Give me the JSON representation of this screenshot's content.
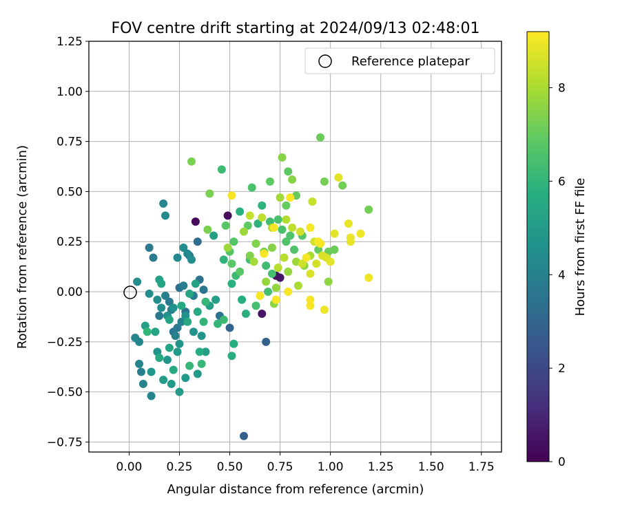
{
  "chart_data": {
    "type": "scatter",
    "title": "FOV centre drift starting at 2024/09/13 02:48:01",
    "xlabel": "Angular distance from reference (arcmin)",
    "ylabel": "Rotation from reference (arcmin)",
    "xlim": [
      -0.2,
      1.85
    ],
    "ylim": [
      -0.8,
      1.25
    ],
    "xticks": [
      "0.00",
      "0.25",
      "0.50",
      "0.75",
      "1.00",
      "1.25",
      "1.50",
      "1.75"
    ],
    "yticks": [
      "−0.75",
      "−0.50",
      "−0.25",
      "0.00",
      "0.25",
      "0.50",
      "0.75",
      "1.00",
      "1.25"
    ],
    "grid": true,
    "legend": {
      "label": "Reference platepar",
      "position": "top-right"
    },
    "reference_point": {
      "x": 0.0,
      "y": 0.0
    },
    "colorbar": {
      "label": "Hours from first FF file",
      "range": [
        0,
        9.2
      ],
      "ticks": [
        "0",
        "2",
        "4",
        "6",
        "8"
      ],
      "colormap": "viridis"
    },
    "points": [
      {
        "x": 0.33,
        "y": 0.35,
        "c": 0.3
      },
      {
        "x": 0.49,
        "y": 0.38,
        "c": 0.3
      },
      {
        "x": 0.73,
        "y": 0.08,
        "c": 0.4
      },
      {
        "x": 0.66,
        "y": -0.11,
        "c": 0.5
      },
      {
        "x": 0.75,
        "y": 0.07,
        "c": 0.5
      },
      {
        "x": 0.57,
        "y": -0.72,
        "c": 2.8
      },
      {
        "x": 0.68,
        "y": -0.25,
        "c": 2.9
      },
      {
        "x": 0.5,
        "y": -0.18,
        "c": 3.0
      },
      {
        "x": 0.34,
        "y": 0.25,
        "c": 3.3
      },
      {
        "x": 0.25,
        "y": 0.02,
        "c": 3.4
      },
      {
        "x": 0.35,
        "y": 0.06,
        "c": 3.4
      },
      {
        "x": 0.45,
        "y": -0.12,
        "c": 3.5
      },
      {
        "x": 0.28,
        "y": -0.1,
        "c": 3.5
      },
      {
        "x": 0.22,
        "y": -0.2,
        "c": 3.6
      },
      {
        "x": 0.3,
        "y": 0.18,
        "c": 3.6
      },
      {
        "x": 0.37,
        "y": 0.01,
        "c": 3.6
      },
      {
        "x": 0.2,
        "y": -0.05,
        "c": 3.7
      },
      {
        "x": 0.15,
        "y": -0.12,
        "c": 3.7
      },
      {
        "x": 0.24,
        "y": -0.18,
        "c": 3.7
      },
      {
        "x": 0.32,
        "y": -0.02,
        "c": 3.8
      },
      {
        "x": 0.1,
        "y": 0.22,
        "c": 3.8
      },
      {
        "x": 0.12,
        "y": 0.17,
        "c": 3.8
      },
      {
        "x": 0.27,
        "y": 0.03,
        "c": 3.9
      },
      {
        "x": 0.18,
        "y": -0.02,
        "c": 3.9
      },
      {
        "x": 0.21,
        "y": -0.09,
        "c": 3.9
      },
      {
        "x": 0.26,
        "y": -0.15,
        "c": 4.0
      },
      {
        "x": 0.23,
        "y": -0.22,
        "c": 4.0
      },
      {
        "x": 0.06,
        "y": -0.4,
        "c": 4.0
      },
      {
        "x": 0.05,
        "y": -0.36,
        "c": 4.1
      },
      {
        "x": 0.11,
        "y": -0.52,
        "c": 4.1
      },
      {
        "x": 0.07,
        "y": -0.46,
        "c": 4.1
      },
      {
        "x": 0.03,
        "y": -0.23,
        "c": 4.2
      },
      {
        "x": 0.05,
        "y": -0.25,
        "c": 4.2
      },
      {
        "x": 0.17,
        "y": 0.44,
        "c": 4.2
      },
      {
        "x": 0.18,
        "y": 0.38,
        "c": 4.3
      },
      {
        "x": 0.24,
        "y": 0.17,
        "c": 4.3
      },
      {
        "x": 0.29,
        "y": 0.19,
        "c": 4.3
      },
      {
        "x": 0.31,
        "y": 0.16,
        "c": 4.4
      },
      {
        "x": 0.27,
        "y": 0.22,
        "c": 4.4
      },
      {
        "x": 0.04,
        "y": 0.05,
        "c": 4.4
      },
      {
        "x": 0.1,
        "y": -0.01,
        "c": 4.5
      },
      {
        "x": 0.14,
        "y": -0.04,
        "c": 4.5
      },
      {
        "x": 0.16,
        "y": -0.08,
        "c": 4.5
      },
      {
        "x": 0.19,
        "y": -0.12,
        "c": 4.6
      },
      {
        "x": 0.22,
        "y": -0.08,
        "c": 4.6
      },
      {
        "x": 0.28,
        "y": -0.12,
        "c": 4.6
      },
      {
        "x": 0.32,
        "y": -0.2,
        "c": 4.7
      },
      {
        "x": 0.36,
        "y": -0.22,
        "c": 4.7
      },
      {
        "x": 0.25,
        "y": -0.26,
        "c": 4.7
      },
      {
        "x": 0.14,
        "y": -0.3,
        "c": 4.8
      },
      {
        "x": 0.11,
        "y": -0.4,
        "c": 4.8
      },
      {
        "x": 0.19,
        "y": -0.34,
        "c": 4.8
      },
      {
        "x": 0.24,
        "y": -0.3,
        "c": 4.9
      },
      {
        "x": 0.34,
        "y": -0.41,
        "c": 4.9
      },
      {
        "x": 0.28,
        "y": -0.43,
        "c": 4.9
      },
      {
        "x": 0.25,
        "y": -0.5,
        "c": 5.0
      },
      {
        "x": 0.21,
        "y": -0.46,
        "c": 5.0
      },
      {
        "x": 0.17,
        "y": -0.44,
        "c": 5.0
      },
      {
        "x": 0.38,
        "y": -0.3,
        "c": 5.1
      },
      {
        "x": 0.4,
        "y": -0.07,
        "c": 5.1
      },
      {
        "x": 0.43,
        "y": -0.04,
        "c": 5.1
      },
      {
        "x": 0.42,
        "y": 0.28,
        "c": 5.2
      },
      {
        "x": 0.15,
        "y": 0.06,
        "c": 5.2
      },
      {
        "x": 0.08,
        "y": -0.17,
        "c": 5.2
      },
      {
        "x": 0.13,
        "y": -0.2,
        "c": 5.3
      },
      {
        "x": 0.2,
        "y": -0.28,
        "c": 5.3
      },
      {
        "x": 0.33,
        "y": 0.04,
        "c": 5.3
      },
      {
        "x": 0.3,
        "y": -0.01,
        "c": 5.4
      },
      {
        "x": 0.16,
        "y": 0.04,
        "c": 5.4
      },
      {
        "x": 0.2,
        "y": -0.14,
        "c": 5.4
      },
      {
        "x": 0.26,
        "y": -0.07,
        "c": 5.5
      },
      {
        "x": 0.34,
        "y": -0.1,
        "c": 5.5
      },
      {
        "x": 0.29,
        "y": -0.15,
        "c": 5.5
      },
      {
        "x": 0.35,
        "y": -0.3,
        "c": 5.6
      },
      {
        "x": 0.22,
        "y": -0.39,
        "c": 5.6
      },
      {
        "x": 0.15,
        "y": -0.33,
        "c": 5.6
      },
      {
        "x": 0.51,
        "y": -0.32,
        "c": 5.7
      },
      {
        "x": 0.52,
        "y": -0.26,
        "c": 5.7
      },
      {
        "x": 0.56,
        "y": -0.04,
        "c": 5.7
      },
      {
        "x": 0.58,
        "y": -0.11,
        "c": 5.8
      },
      {
        "x": 0.51,
        "y": 0.04,
        "c": 5.8
      },
      {
        "x": 0.55,
        "y": 0.4,
        "c": 5.8
      },
      {
        "x": 0.64,
        "y": 0.34,
        "c": 5.9
      },
      {
        "x": 0.66,
        "y": 0.43,
        "c": 5.9
      },
      {
        "x": 0.47,
        "y": 0.16,
        "c": 5.9
      },
      {
        "x": 0.44,
        "y": -0.16,
        "c": 6.0
      },
      {
        "x": 0.37,
        "y": -0.15,
        "c": 6.0
      },
      {
        "x": 0.09,
        "y": -0.2,
        "c": 6.0
      },
      {
        "x": 0.36,
        "y": -0.36,
        "c": 6.1
      },
      {
        "x": 0.3,
        "y": -0.37,
        "c": 6.1
      },
      {
        "x": 0.38,
        "y": -0.05,
        "c": 6.1
      },
      {
        "x": 0.47,
        "y": -0.14,
        "c": 6.2
      },
      {
        "x": 0.46,
        "y": 0.61,
        "c": 6.2
      },
      {
        "x": 0.53,
        "y": 0.08,
        "c": 6.2
      },
      {
        "x": 0.6,
        "y": 0.16,
        "c": 6.3
      },
      {
        "x": 0.68,
        "y": 0.13,
        "c": 6.3
      },
      {
        "x": 0.7,
        "y": 0.35,
        "c": 6.3
      },
      {
        "x": 0.63,
        "y": -0.07,
        "c": 6.4
      },
      {
        "x": 0.69,
        "y": 0.0,
        "c": 6.4
      },
      {
        "x": 0.71,
        "y": 0.09,
        "c": 6.4
      },
      {
        "x": 0.61,
        "y": 0.52,
        "c": 6.5
      },
      {
        "x": 0.74,
        "y": 0.36,
        "c": 6.5
      },
      {
        "x": 0.76,
        "y": 0.31,
        "c": 6.5
      },
      {
        "x": 0.8,
        "y": 0.28,
        "c": 6.6
      },
      {
        "x": 0.78,
        "y": 0.25,
        "c": 6.6
      },
      {
        "x": 0.82,
        "y": 0.21,
        "c": 6.6
      },
      {
        "x": 0.86,
        "y": 0.28,
        "c": 6.7
      },
      {
        "x": 0.52,
        "y": 0.25,
        "c": 6.7
      },
      {
        "x": 0.5,
        "y": 0.2,
        "c": 6.7
      },
      {
        "x": 0.55,
        "y": 0.1,
        "c": 6.8
      },
      {
        "x": 0.51,
        "y": 0.14,
        "c": 6.8
      },
      {
        "x": 0.48,
        "y": 0.33,
        "c": 6.8
      },
      {
        "x": 0.59,
        "y": 0.33,
        "c": 6.9
      },
      {
        "x": 0.7,
        "y": 0.55,
        "c": 6.9
      },
      {
        "x": 0.79,
        "y": 0.6,
        "c": 6.9
      },
      {
        "x": 0.83,
        "y": 0.48,
        "c": 7.0
      },
      {
        "x": 0.78,
        "y": 0.43,
        "c": 7.0
      },
      {
        "x": 0.94,
        "y": 0.21,
        "c": 7.0
      },
      {
        "x": 0.99,
        "y": 0.2,
        "c": 7.1
      },
      {
        "x": 1.02,
        "y": 0.21,
        "c": 7.1
      },
      {
        "x": 0.95,
        "y": 0.77,
        "c": 7.1
      },
      {
        "x": 1.06,
        "y": 0.53,
        "c": 7.2
      },
      {
        "x": 1.19,
        "y": 0.41,
        "c": 7.2
      },
      {
        "x": 0.97,
        "y": 0.55,
        "c": 7.2
      },
      {
        "x": 0.31,
        "y": 0.65,
        "c": 7.3
      },
      {
        "x": 0.4,
        "y": 0.49,
        "c": 7.3
      },
      {
        "x": 0.39,
        "y": 0.31,
        "c": 7.3
      },
      {
        "x": 0.6,
        "y": 0.18,
        "c": 7.4
      },
      {
        "x": 0.63,
        "y": 0.24,
        "c": 7.4
      },
      {
        "x": 0.67,
        "y": 0.2,
        "c": 7.4
      },
      {
        "x": 0.71,
        "y": 0.22,
        "c": 7.5
      },
      {
        "x": 0.76,
        "y": 0.67,
        "c": 7.5
      },
      {
        "x": 0.81,
        "y": 0.56,
        "c": 7.5
      },
      {
        "x": 0.87,
        "y": 0.13,
        "c": 7.6
      },
      {
        "x": 0.99,
        "y": 0.05,
        "c": 7.6
      },
      {
        "x": 0.72,
        "y": -0.06,
        "c": 7.6
      },
      {
        "x": 0.68,
        "y": 0.05,
        "c": 7.7
      },
      {
        "x": 0.73,
        "y": 0.02,
        "c": 7.7
      },
      {
        "x": 0.79,
        "y": 0.1,
        "c": 7.7
      },
      {
        "x": 0.83,
        "y": 0.15,
        "c": 7.8
      },
      {
        "x": 0.57,
        "y": 0.3,
        "c": 7.8
      },
      {
        "x": 0.49,
        "y": 0.22,
        "c": 7.8
      },
      {
        "x": 0.62,
        "y": 0.15,
        "c": 7.9
      },
      {
        "x": 0.75,
        "y": 0.47,
        "c": 7.9
      },
      {
        "x": 0.84,
        "y": 0.03,
        "c": 8.0
      },
      {
        "x": 0.9,
        "y": 0.18,
        "c": 8.0
      },
      {
        "x": 0.78,
        "y": 0.36,
        "c": 8.1
      },
      {
        "x": 0.71,
        "y": 0.32,
        "c": 8.1
      },
      {
        "x": 0.74,
        "y": 0.12,
        "c": 8.2
      },
      {
        "x": 0.77,
        "y": 0.17,
        "c": 8.2
      },
      {
        "x": 0.81,
        "y": 0.32,
        "c": 8.3
      },
      {
        "x": 0.66,
        "y": 0.37,
        "c": 8.3
      },
      {
        "x": 0.6,
        "y": 0.38,
        "c": 8.4
      },
      {
        "x": 0.91,
        "y": 0.45,
        "c": 8.4
      },
      {
        "x": 0.86,
        "y": 0.14,
        "c": 8.5
      },
      {
        "x": 0.92,
        "y": 0.25,
        "c": 8.5
      },
      {
        "x": 0.93,
        "y": 0.14,
        "c": 8.6
      },
      {
        "x": 0.85,
        "y": 0.3,
        "c": 8.6
      },
      {
        "x": 0.9,
        "y": 0.09,
        "c": 8.7
      },
      {
        "x": 0.96,
        "y": 0.18,
        "c": 8.7
      },
      {
        "x": 0.98,
        "y": 0.17,
        "c": 8.7
      },
      {
        "x": 1.0,
        "y": 0.15,
        "c": 8.8
      },
      {
        "x": 1.02,
        "y": 0.29,
        "c": 8.8
      },
      {
        "x": 1.04,
        "y": 0.57,
        "c": 8.8
      },
      {
        "x": 1.09,
        "y": 0.34,
        "c": 8.9
      },
      {
        "x": 1.1,
        "y": 0.27,
        "c": 8.9
      },
      {
        "x": 1.1,
        "y": 0.25,
        "c": 8.9
      },
      {
        "x": 1.15,
        "y": 0.29,
        "c": 9.0
      },
      {
        "x": 1.19,
        "y": 0.07,
        "c": 9.0
      },
      {
        "x": 0.97,
        "y": -0.09,
        "c": 9.0
      },
      {
        "x": 0.9,
        "y": -0.04,
        "c": 9.1
      },
      {
        "x": 0.9,
        "y": -0.07,
        "c": 9.1
      },
      {
        "x": 0.79,
        "y": 0.0,
        "c": 9.1
      },
      {
        "x": 0.73,
        "y": -0.04,
        "c": 9.1
      },
      {
        "x": 0.65,
        "y": -0.02,
        "c": 9.1
      },
      {
        "x": 0.67,
        "y": 0.19,
        "c": 9.1
      },
      {
        "x": 0.51,
        "y": 0.48,
        "c": 9.1
      },
      {
        "x": 0.72,
        "y": 0.32,
        "c": 9.1
      },
      {
        "x": 0.88,
        "y": 0.17,
        "c": 9.1
      },
      {
        "x": 0.94,
        "y": 0.25,
        "c": 9.1
      },
      {
        "x": 0.95,
        "y": 0.24,
        "c": 9.1
      },
      {
        "x": 0.9,
        "y": 0.32,
        "c": 9.1
      },
      {
        "x": 0.8,
        "y": 0.47,
        "c": 9.1
      }
    ]
  }
}
